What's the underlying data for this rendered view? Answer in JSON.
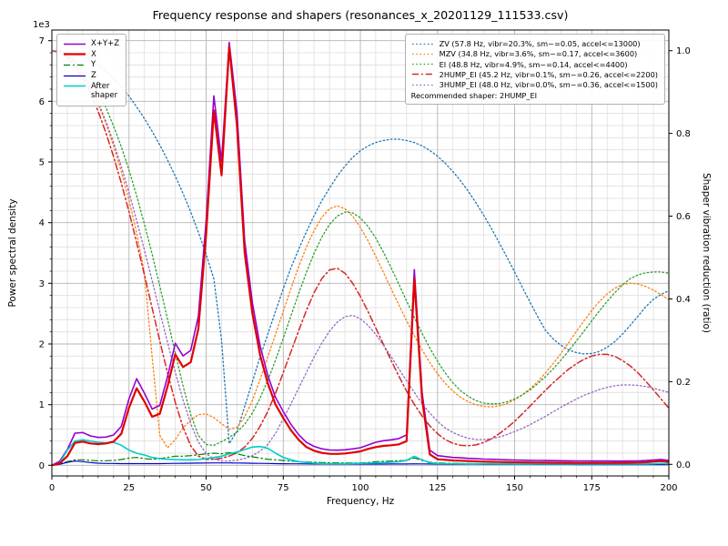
{
  "title": "Frequency response and shapers (resonances_x_20201129_111533.csv)",
  "axes": {
    "x_label": "Frequency, Hz",
    "y_left_label": "Power spectral density",
    "y_right_label": "Shaper vibration reduction (ratio)",
    "y_left_multiplier": "1e3",
    "x_ticks": [
      0,
      25,
      50,
      75,
      100,
      125,
      150,
      175,
      200
    ],
    "y_left_ticks": [
      0,
      1,
      2,
      3,
      4,
      5,
      6,
      7
    ],
    "y_right_tick_labels": [
      "0.0",
      "0.2",
      "0.4",
      "0.6",
      "0.8",
      "1.0"
    ]
  },
  "legend_note": "Recommended shaper: 2HUMP_EI",
  "chart_data": {
    "type": "line",
    "x_range": [
      0,
      200
    ],
    "y_left_range": [
      0,
      7000
    ],
    "y_right_range": [
      0.0,
      1.0
    ],
    "grid": "major+minor",
    "x_start": 0,
    "x_step": 2.5,
    "series": [
      {
        "name": "xyz",
        "legend": "X+Y+Z",
        "group": "psd",
        "axis": "left",
        "color": "#9400d3",
        "style": "solid",
        "width": 1.6,
        "z": 2,
        "values": [
          0,
          65,
          260,
          530,
          540,
          485,
          460,
          465,
          500,
          643,
          1098,
          1428,
          1188,
          928,
          988,
          1460,
          2012,
          1803,
          1895,
          2461,
          4028,
          6090,
          5010,
          6970,
          5828,
          3696,
          2674,
          1972,
          1480,
          1118,
          886,
          675,
          504,
          378,
          312,
          272,
          253,
          249,
          255,
          270,
          290,
          335,
          380,
          405,
          421,
          441,
          502,
          3225,
          1203,
          251,
          160,
          144,
          130,
          123,
          115,
          109,
          102,
          99,
          95,
          90,
          87,
          85,
          82,
          80,
          78,
          77,
          76,
          74,
          72,
          72,
          71,
          71,
          71,
          70,
          69,
          71,
          73,
          78,
          88,
          97,
          82
        ]
      },
      {
        "name": "x",
        "legend": "X",
        "group": "psd",
        "axis": "left",
        "color": "#e00000",
        "style": "solid",
        "width": 2.2,
        "z": 6,
        "values": [
          0,
          30,
          150,
          370,
          390,
          360,
          350,
          360,
          390,
          520,
          950,
          1270,
          1050,
          800,
          850,
          1300,
          1830,
          1620,
          1700,
          2250,
          3800,
          5850,
          4780,
          6900,
          5600,
          3500,
          2500,
          1820,
          1350,
          1000,
          780,
          580,
          420,
          300,
          240,
          205,
          190,
          188,
          195,
          210,
          230,
          270,
          300,
          320,
          330,
          345,
          400,
          3080,
          1100,
          180,
          100,
          90,
          80,
          75,
          70,
          65,
          60,
          58,
          55,
          52,
          50,
          48,
          46,
          45,
          44,
          43,
          42,
          41,
          40,
          40,
          40,
          40,
          40,
          40,
          40,
          42,
          45,
          50,
          60,
          70,
          55
        ]
      },
      {
        "name": "y",
        "legend": "Y",
        "group": "psd",
        "axis": "left",
        "color": "#008000",
        "style": "dashdot",
        "width": 1.2,
        "z": 3,
        "values": [
          0,
          20,
          60,
          90,
          90,
          80,
          75,
          75,
          80,
          95,
          120,
          130,
          110,
          100,
          110,
          130,
          150,
          150,
          160,
          175,
          190,
          200,
          190,
          210,
          190,
          160,
          140,
          120,
          100,
          90,
          80,
          70,
          60,
          55,
          50,
          46,
          43,
          41,
          40,
          40,
          40,
          45,
          60,
          65,
          70,
          75,
          80,
          120,
          80,
          50,
          40,
          35,
          32,
          30,
          28,
          27,
          26,
          25,
          24,
          23,
          22,
          22,
          21,
          21,
          20,
          20,
          20,
          19,
          19,
          19,
          18,
          18,
          18,
          17,
          17,
          17,
          16,
          16,
          16,
          15,
          15
        ]
      },
      {
        "name": "z",
        "legend": "Z",
        "group": "psd",
        "axis": "left",
        "color": "#0000cc",
        "style": "solid",
        "width": 1.2,
        "z": 4,
        "values": [
          0,
          15,
          50,
          70,
          60,
          45,
          35,
          30,
          30,
          28,
          28,
          28,
          28,
          28,
          28,
          30,
          32,
          33,
          35,
          36,
          38,
          40,
          40,
          40,
          38,
          36,
          34,
          32,
          30,
          28,
          26,
          25,
          24,
          23,
          22,
          21,
          20,
          20,
          20,
          20,
          20,
          20,
          20,
          20,
          21,
          21,
          22,
          25,
          23,
          21,
          20,
          19,
          18,
          18,
          17,
          17,
          16,
          16,
          16,
          15,
          15,
          15,
          15,
          14,
          14,
          14,
          14,
          14,
          13,
          13,
          13,
          13,
          13,
          13,
          12,
          12,
          12,
          12,
          12,
          12,
          12
        ]
      },
      {
        "name": "after_shaper",
        "legend": "After\nshaper",
        "group": "psd",
        "axis": "left",
        "color": "#00cccc",
        "style": "solid",
        "width": 1.6,
        "z": 5,
        "values": [
          0,
          40,
          250,
          400,
          420,
          400,
          380,
          370,
          380,
          330,
          250,
          200,
          170,
          130,
          110,
          100,
          95,
          90,
          90,
          95,
          110,
          130,
          150,
          190,
          220,
          260,
          300,
          310,
          280,
          200,
          130,
          90,
          60,
          45,
          35,
          30,
          28,
          27,
          28,
          30,
          32,
          35,
          40,
          45,
          50,
          60,
          80,
          150,
          90,
          40,
          30,
          28,
          27,
          26,
          25,
          25,
          24,
          24,
          23,
          23,
          22,
          22,
          22,
          21,
          21,
          21,
          20,
          20,
          20,
          20,
          20,
          20,
          20,
          20,
          20,
          20,
          21,
          22,
          25,
          30,
          25
        ]
      },
      {
        "name": "zv",
        "legend": "ZV (57.8 Hz, vibr=20.3%, sm~=0.05, accel<=13000)",
        "group": "shaper",
        "axis": "right",
        "color": "#1f77b4",
        "style": "dotted",
        "width": 1.3,
        "z": 1,
        "values": [
          1.0,
          0.999,
          0.996,
          0.992,
          0.986,
          0.977,
          0.965,
          0.95,
          0.932,
          0.912,
          0.89,
          0.864,
          0.836,
          0.805,
          0.772,
          0.736,
          0.697,
          0.655,
          0.61,
          0.561,
          0.508,
          0.448,
          0.3,
          0.05,
          0.08,
          0.14,
          0.2,
          0.26,
          0.315,
          0.37,
          0.425,
          0.475,
          0.52,
          0.562,
          0.601,
          0.637,
          0.668,
          0.697,
          0.721,
          0.742,
          0.758,
          0.77,
          0.778,
          0.783,
          0.786,
          0.786,
          0.783,
          0.778,
          0.77,
          0.759,
          0.745,
          0.728,
          0.708,
          0.685,
          0.66,
          0.632,
          0.602,
          0.57,
          0.536,
          0.501,
          0.465,
          0.428,
          0.392,
          0.357,
          0.324,
          0.303,
          0.288,
          0.277,
          0.27,
          0.267,
          0.268,
          0.273,
          0.283,
          0.297,
          0.315,
          0.336,
          0.358,
          0.381,
          0.399,
          0.411,
          0.42
        ]
      },
      {
        "name": "mzv",
        "legend": "MZV (34.8 Hz, vibr=3.6%, sm~=0.17, accel<=3600)",
        "group": "shaper",
        "axis": "right",
        "color": "#ff7f0e",
        "style": "dotted",
        "width": 1.3,
        "z": 1,
        "values": [
          1.0,
          0.997,
          0.987,
          0.97,
          0.945,
          0.912,
          0.872,
          0.825,
          0.77,
          0.708,
          0.638,
          0.56,
          0.462,
          0.26,
          0.07,
          0.04,
          0.06,
          0.088,
          0.107,
          0.12,
          0.122,
          0.113,
          0.098,
          0.085,
          0.09,
          0.115,
          0.155,
          0.205,
          0.26,
          0.315,
          0.37,
          0.425,
          0.478,
          0.525,
          0.565,
          0.597,
          0.618,
          0.625,
          0.618,
          0.6,
          0.573,
          0.54,
          0.503,
          0.464,
          0.424,
          0.385,
          0.347,
          0.311,
          0.277,
          0.246,
          0.219,
          0.196,
          0.177,
          0.162,
          0.151,
          0.144,
          0.14,
          0.139,
          0.141,
          0.147,
          0.156,
          0.168,
          0.183,
          0.2,
          0.221,
          0.244,
          0.268,
          0.294,
          0.321,
          0.347,
          0.372,
          0.394,
          0.412,
          0.426,
          0.435,
          0.438,
          0.436,
          0.43,
          0.421,
          0.41,
          0.398
        ]
      },
      {
        "name": "ei",
        "legend": "EI (48.8 Hz, vibr=4.9%, sm~=0.14, accel<=4400)",
        "group": "shaper",
        "axis": "right",
        "color": "#2ca02c",
        "style": "dotted",
        "width": 1.3,
        "z": 1,
        "values": [
          1.0,
          0.998,
          0.99,
          0.977,
          0.958,
          0.933,
          0.901,
          0.863,
          0.818,
          0.768,
          0.711,
          0.649,
          0.581,
          0.508,
          0.431,
          0.351,
          0.269,
          0.19,
          0.12,
          0.07,
          0.048,
          0.046,
          0.055,
          0.065,
          0.078,
          0.097,
          0.124,
          0.16,
          0.203,
          0.252,
          0.305,
          0.359,
          0.413,
          0.464,
          0.51,
          0.549,
          0.58,
          0.6,
          0.61,
          0.608,
          0.596,
          0.575,
          0.547,
          0.513,
          0.475,
          0.435,
          0.395,
          0.355,
          0.317,
          0.281,
          0.249,
          0.221,
          0.197,
          0.178,
          0.164,
          0.154,
          0.148,
          0.146,
          0.147,
          0.151,
          0.158,
          0.168,
          0.18,
          0.195,
          0.212,
          0.231,
          0.252,
          0.274,
          0.298,
          0.322,
          0.347,
          0.371,
          0.394,
          0.415,
          0.434,
          0.449,
          0.458,
          0.463,
          0.465,
          0.465,
          0.462
        ]
      },
      {
        "name": "2hump_ei",
        "legend": "2HUMP_EI (45.2 Hz, vibr=0.1%, sm~=0.26, accel<=2200)",
        "group": "shaper",
        "axis": "right",
        "color": "#d62728",
        "style": "dashdot",
        "width": 1.5,
        "z": 1,
        "values": [
          1.0,
          0.996,
          0.984,
          0.963,
          0.935,
          0.898,
          0.854,
          0.802,
          0.744,
          0.68,
          0.61,
          0.536,
          0.458,
          0.378,
          0.298,
          0.221,
          0.15,
          0.09,
          0.045,
          0.02,
          0.012,
          0.012,
          0.015,
          0.02,
          0.028,
          0.042,
          0.063,
          0.092,
          0.128,
          0.172,
          0.222,
          0.272,
          0.323,
          0.372,
          0.415,
          0.449,
          0.47,
          0.474,
          0.462,
          0.438,
          0.406,
          0.369,
          0.33,
          0.29,
          0.251,
          0.213,
          0.177,
          0.145,
          0.117,
          0.093,
          0.074,
          0.06,
          0.051,
          0.046,
          0.045,
          0.047,
          0.053,
          0.062,
          0.074,
          0.088,
          0.104,
          0.122,
          0.141,
          0.16,
          0.179,
          0.197,
          0.214,
          0.23,
          0.243,
          0.254,
          0.262,
          0.266,
          0.266,
          0.261,
          0.251,
          0.238,
          0.221,
          0.201,
          0.18,
          0.158,
          0.136
        ]
      },
      {
        "name": "3hump_ei",
        "legend": "3HUMP_EI (48.0 Hz, vibr=0.0%, sm~=0.36, accel<=1500)",
        "group": "shaper",
        "axis": "right",
        "color": "#9467bd",
        "style": "dotted",
        "width": 1.3,
        "z": 1,
        "values": [
          1.0,
          0.997,
          0.988,
          0.971,
          0.947,
          0.915,
          0.876,
          0.83,
          0.778,
          0.72,
          0.657,
          0.589,
          0.518,
          0.444,
          0.369,
          0.295,
          0.223,
          0.156,
          0.098,
          0.054,
          0.026,
          0.013,
          0.008,
          0.008,
          0.01,
          0.014,
          0.021,
          0.032,
          0.048,
          0.075,
          0.11,
          0.146,
          0.184,
          0.222,
          0.259,
          0.293,
          0.322,
          0.344,
          0.357,
          0.36,
          0.352,
          0.336,
          0.314,
          0.288,
          0.26,
          0.231,
          0.202,
          0.174,
          0.147,
          0.124,
          0.104,
          0.088,
          0.077,
          0.069,
          0.063,
          0.06,
          0.06,
          0.062,
          0.066,
          0.072,
          0.079,
          0.087,
          0.096,
          0.106,
          0.116,
          0.127,
          0.138,
          0.148,
          0.158,
          0.167,
          0.174,
          0.181,
          0.186,
          0.19,
          0.192,
          0.192,
          0.191,
          0.188,
          0.184,
          0.179,
          0.174
        ]
      }
    ]
  }
}
